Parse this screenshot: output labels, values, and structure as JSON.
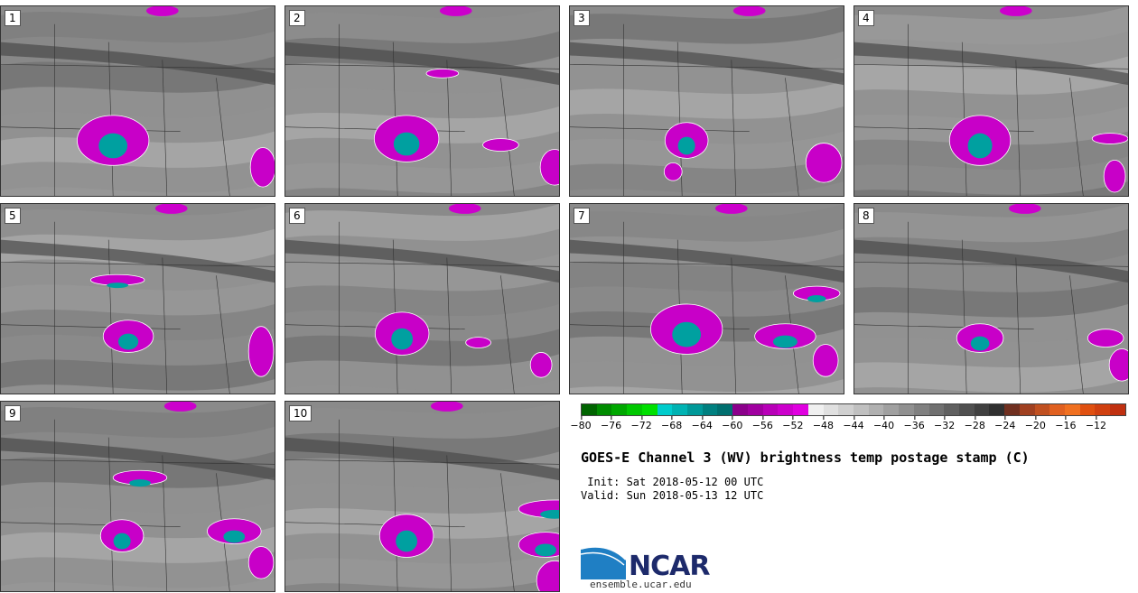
{
  "members": [
    {
      "label": "1"
    },
    {
      "label": "2"
    },
    {
      "label": "3"
    },
    {
      "label": "4"
    },
    {
      "label": "5"
    },
    {
      "label": "6"
    },
    {
      "label": "7"
    },
    {
      "label": "8"
    },
    {
      "label": "9"
    },
    {
      "label": "10"
    }
  ],
  "colorbar": {
    "colors": [
      "#006400",
      "#008c00",
      "#00a800",
      "#00c800",
      "#00e000",
      "#00cccc",
      "#00b3b3",
      "#009999",
      "#008080",
      "#006f6f",
      "#8b008b",
      "#a000a0",
      "#b800b8",
      "#cc00cc",
      "#e000e0",
      "#f0f0f0",
      "#e0e0e0",
      "#d0d0d0",
      "#c0c0c0",
      "#b0b0b0",
      "#a0a0a0",
      "#909090",
      "#808080",
      "#707070",
      "#606060",
      "#505050",
      "#404040",
      "#303030",
      "#703020",
      "#a04020",
      "#c05020",
      "#e06020",
      "#f07020",
      "#e05010",
      "#d04010",
      "#c03010"
    ],
    "tick_labels": [
      "−80",
      "−76",
      "−72",
      "−68",
      "−64",
      "−60",
      "−56",
      "−52",
      "−48",
      "−44",
      "−40",
      "−36",
      "−32",
      "−28",
      "−24",
      "−20",
      "−16",
      "−12"
    ]
  },
  "title": "GOES-E Channel 3 (WV) brightness temp postage stamp (C)",
  "init": " Init: Sat 2018-05-12 00 UTC",
  "valid": "Valid: Sun 2018-05-13 12 UTC",
  "logo": {
    "name": "NCAR",
    "url": "ensemble.ucar.edu"
  }
}
